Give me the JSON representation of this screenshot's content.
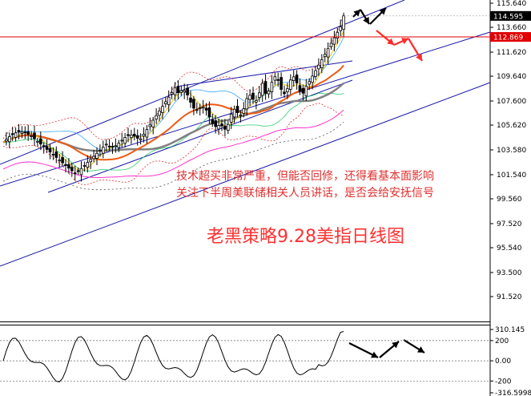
{
  "chart_data": [
    {
      "type": "candlestick",
      "ylim": [
        92.5,
        115.595
      ],
      "y_ticks": [
        "115.640",
        "113.660",
        "111.620",
        "109.640",
        "107.600",
        "105.620",
        "103.580",
        "101.540",
        "99.560",
        "97.520",
        "95.540",
        "93.500",
        "91.520"
      ],
      "tick_values": [
        115.64,
        113.66,
        111.62,
        109.64,
        107.6,
        105.62,
        103.58,
        101.54,
        99.56,
        97.52,
        95.54,
        93.5,
        91.52
      ],
      "current_price": "114.595",
      "red_line_price": "112.869",
      "colors": {
        "current_box": "#000000",
        "red_line_box": "#e00000",
        "up_candle": "#ffffff",
        "down_candle": "#000000"
      },
      "annotations": [
        {
          "text": "技术超买非常严重，但能否回修，还得看基本面影响",
          "color": "#e03030"
        },
        {
          "text": "关注下半周美联储相关人员讲话，是否会给安抚信号",
          "color": "#e03030"
        }
      ],
      "watermark": {
        "text": "老黑策略9.28美指日线图",
        "color": "#ff3030"
      },
      "grid": false,
      "legend": "none"
    },
    {
      "type": "line",
      "ylim": [
        -316.5998,
        310.145
      ],
      "y_ticks": [
        "310.145",
        "200",
        "0.00",
        "-200",
        "-316.5998"
      ],
      "grid": false
    }
  ]
}
